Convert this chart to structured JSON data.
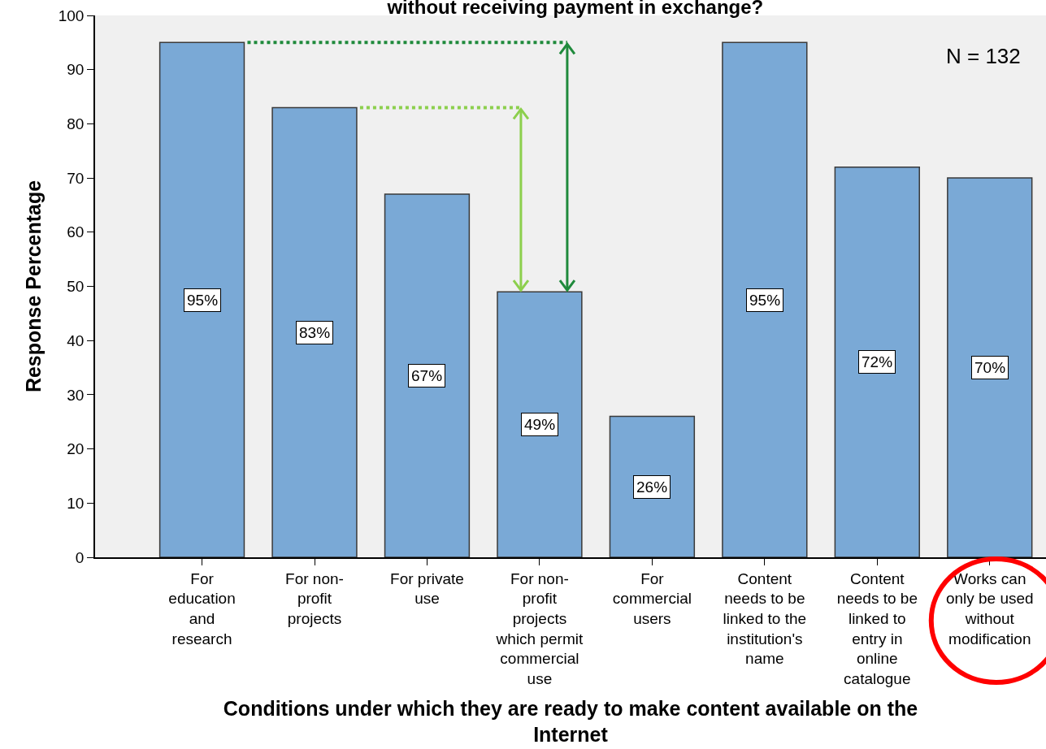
{
  "chart_data": {
    "type": "bar",
    "title": "without receiving payment in exchange?",
    "xlabel": "Conditions under which they are ready to make content available on the\nInternet",
    "ylabel": "Response Percentage",
    "categories": [
      "For\neducation\nand\nresearch",
      "For non-\nprofit\nprojects",
      "For private\nuse",
      "For non-\nprofit\nprojects\nwhich permit\ncommercial\nuse",
      "For\ncommercial\nusers",
      "Content\nneeds to be\nlinked to the\ninstitution's\nname",
      "Content\nneeds to be\nlinked to\nentry in\nonline\ncatalogue",
      "Works can\nonly be used\nwithout\nmodification"
    ],
    "values": [
      95,
      83,
      67,
      49,
      26,
      95,
      72,
      70
    ],
    "value_labels": [
      "95%",
      "83%",
      "67%",
      "49%",
      "26%",
      "95%",
      "72%",
      "70%"
    ],
    "color": "#7aa9d6",
    "ylim": [
      0,
      100
    ],
    "yticks": [
      0,
      10,
      20,
      30,
      40,
      50,
      60,
      70,
      80,
      90,
      100
    ],
    "annotations": [
      "N = 132"
    ]
  }
}
